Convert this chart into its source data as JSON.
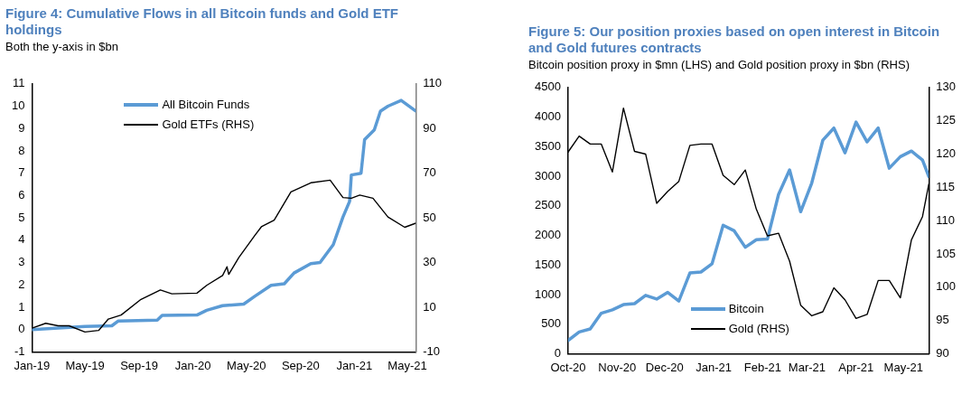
{
  "chart_data": [
    {
      "type": "line",
      "title": "Figure 4: Cumulative Flows in all Bitcoin funds and Gold ETF holdings",
      "subtitle": "Both the y-axis in $bn",
      "legend": "top",
      "xlim": [
        "2019-01-01",
        "2021-05-20"
      ],
      "xticks": [
        {
          "value": "2019-01-01",
          "label": "Jan-19"
        },
        {
          "value": "2019-05-01",
          "label": "May-19"
        },
        {
          "value": "2019-09-01",
          "label": "Sep-19"
        },
        {
          "value": "2020-01-01",
          "label": "Jan-20"
        },
        {
          "value": "2020-05-01",
          "label": "May-20"
        },
        {
          "value": "2020-09-01",
          "label": "Sep-20"
        },
        {
          "value": "2021-01-01",
          "label": "Jan-21"
        },
        {
          "value": "2021-05-01",
          "label": "May-21"
        }
      ],
      "ylim": [
        -1,
        11
      ],
      "yticks": [
        -1,
        0,
        1,
        2,
        3,
        4,
        5,
        6,
        7,
        8,
        9,
        10,
        11
      ],
      "y2lim": [
        -10,
        110
      ],
      "y2ticks": [
        -10,
        10,
        30,
        50,
        70,
        90,
        110
      ],
      "series": [
        {
          "name": "All Bitcoin Funds",
          "color": "#5b9bd5",
          "x": [
            "2019-01-01",
            "2019-05-01",
            "2019-07-01",
            "2019-07-15",
            "2019-10-12",
            "2019-10-23",
            "2020-01-10",
            "2020-02-01",
            "2020-03-08",
            "2020-04-25",
            "2020-05-20",
            "2020-06-26",
            "2020-07-26",
            "2020-08-17",
            "2020-09-24",
            "2020-10-15",
            "2020-11-14",
            "2020-12-06",
            "2020-12-21",
            "2020-12-25",
            "2021-01-16",
            "2021-01-24",
            "2021-02-15",
            "2021-03-01",
            "2021-03-18",
            "2021-04-17",
            "2021-05-20"
          ],
          "values": [
            0,
            0.14,
            0.17,
            0.38,
            0.42,
            0.63,
            0.65,
            0.86,
            1.07,
            1.14,
            1.49,
            1.98,
            2.05,
            2.53,
            2.95,
            3.0,
            3.8,
            5.04,
            5.74,
            6.92,
            7.0,
            8.5,
            8.94,
            9.78,
            10.0,
            10.26,
            9.78
          ]
        },
        {
          "name": "Gold ETFs (RHS)",
          "color": "#000000",
          "axis": "y2",
          "x": [
            "2019-01-01",
            "2019-02-01",
            "2019-03-01",
            "2019-03-26",
            "2019-05-01",
            "2019-06-01",
            "2019-06-23",
            "2019-07-22",
            "2019-09-05",
            "2019-10-19",
            "2019-11-14",
            "2020-01-10",
            "2020-02-01",
            "2020-03-08",
            "2020-03-18",
            "2020-03-22",
            "2020-04-14",
            "2020-05-20",
            "2020-06-04",
            "2020-07-03",
            "2020-08-10",
            "2020-09-24",
            "2020-11-07",
            "2020-12-06",
            "2020-12-25",
            "2021-01-13",
            "2021-02-12",
            "2021-03-18",
            "2021-04-25",
            "2021-05-20"
          ],
          "values": [
            0.6,
            2.8,
            1.7,
            1.7,
            -1.1,
            -0.4,
            4.7,
            6.5,
            13.5,
            17.7,
            16.0,
            16.3,
            19.8,
            24.2,
            28.1,
            24.7,
            32.3,
            42.1,
            46,
            49,
            61.6,
            65.7,
            66.9,
            59.1,
            58.8,
            60.2,
            58.8,
            50.4,
            45.8,
            47.6
          ]
        }
      ]
    },
    {
      "type": "line",
      "title": "Figure 5: Our position proxies based on open interest in Bitcoin and Gold futures contracts",
      "subtitle": "Bitcoin position proxy in $mn (LHS) and Gold position proxy in $bn (RHS)",
      "legend": "bottom",
      "x": [
        "2020-10-01",
        "2020-10-08",
        "2020-10-15",
        "2020-10-22",
        "2020-10-29",
        "2020-11-05",
        "2020-11-12",
        "2020-11-19",
        "2020-11-26",
        "2020-12-03",
        "2020-12-10",
        "2020-12-17",
        "2020-12-24",
        "2020-12-31",
        "2021-01-07",
        "2021-01-14",
        "2021-01-21",
        "2021-01-28",
        "2021-02-04",
        "2021-02-11",
        "2021-02-18",
        "2021-02-25",
        "2021-03-04",
        "2021-03-11",
        "2021-03-18",
        "2021-03-25",
        "2021-04-01",
        "2021-04-08",
        "2021-04-15",
        "2021-04-22",
        "2021-04-29",
        "2021-05-06",
        "2021-05-13",
        "2021-05-17"
      ],
      "xlim": [
        "2020-10-01",
        "2021-05-17"
      ],
      "xticks": [
        {
          "value": "2020-10-01",
          "label": "Oct-20"
        },
        {
          "value": "2020-11-01",
          "label": "Nov-20"
        },
        {
          "value": "2020-12-01",
          "label": "Dec-20"
        },
        {
          "value": "2021-01-01",
          "label": "Jan-21"
        },
        {
          "value": "2021-02-01",
          "label": "Feb-21"
        },
        {
          "value": "2021-03-01",
          "label": "Mar-21"
        },
        {
          "value": "2021-04-01",
          "label": "Apr-21"
        },
        {
          "value": "2021-05-01",
          "label": "May-21"
        }
      ],
      "ylim": [
        0,
        4500
      ],
      "yticks": [
        0,
        500,
        1000,
        1500,
        2000,
        2500,
        3000,
        3500,
        4000,
        4500
      ],
      "y2lim": [
        90,
        130
      ],
      "y2ticks": [
        90,
        95,
        100,
        105,
        110,
        115,
        120,
        125,
        130
      ],
      "series": [
        {
          "name": "Bitcoin",
          "color": "#5b9bd5",
          "values": [
            223,
            367,
            418,
            685,
            741,
            830,
            846,
            986,
            924,
            1036,
            891,
            1364,
            1381,
            1520,
            2172,
            2077,
            1799,
            1927,
            1938,
            2690,
            3107,
            2400,
            2885,
            3608,
            3814,
            3396,
            3914,
            3580,
            3814,
            3135,
            3330,
            3425,
            3274,
            2996
          ]
        },
        {
          "name": "Gold (RHS)",
          "color": "#000000",
          "axis": "y2",
          "values": [
            120.3,
            122.7,
            121.5,
            121.5,
            117.3,
            126.9,
            120.4,
            120.0,
            112.6,
            114.4,
            115.9,
            121.3,
            121.5,
            121.5,
            116.8,
            115.4,
            117.6,
            111.7,
            107.7,
            108.1,
            103.9,
            97.3,
            95.7,
            96.3,
            99.9,
            98.1,
            95.3,
            95.9,
            101.0,
            101.0,
            98.4,
            107.1,
            110.6,
            115.5
          ]
        }
      ]
    }
  ]
}
